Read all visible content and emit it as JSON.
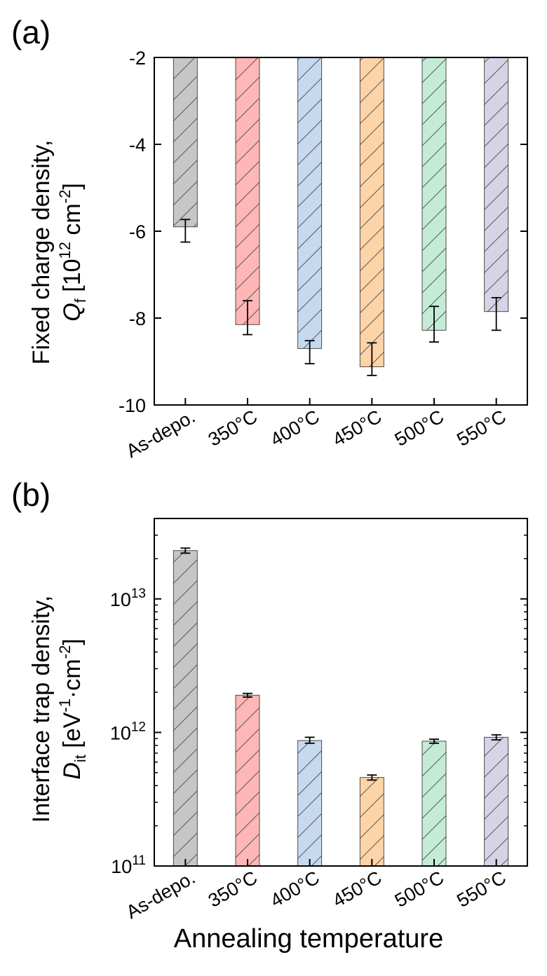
{
  "chart_data": [
    {
      "panel_label": "(a)",
      "type": "bar",
      "yscale": "linear",
      "ylim": [
        -10,
        -2
      ],
      "yticks": [
        -10,
        -8,
        -6,
        -4,
        -2
      ],
      "ytick_labels": [
        "-10",
        "-8",
        "-6",
        "-4",
        "-2"
      ],
      "ylabel_line1": "Fixed charge density,",
      "ylabel_line2_main": "Q",
      "ylabel_line2_sub": "f",
      "ylabel_line2_rest": " [10",
      "ylabel_line2_sup1": "12",
      "ylabel_line2_mid": " cm",
      "ylabel_line2_sup2": "-2",
      "ylabel_line2_end": "]",
      "categories": [
        "As-depo.",
        "350°C",
        "400°C",
        "450°C",
        "500°C",
        "550°C"
      ],
      "values": [
        -5.9,
        -8.15,
        -8.7,
        -9.12,
        -8.28,
        -7.85
      ],
      "error_high": [
        -5.73,
        -7.6,
        -8.52,
        -8.57,
        -7.73,
        -7.53
      ],
      "error_low": [
        -6.25,
        -8.38,
        -9.05,
        -9.32,
        -8.55,
        -8.28
      ],
      "colors": [
        "#c6c6c6",
        "#ffb6b6",
        "#c6d9ee",
        "#fdd4a8",
        "#c4ebd6",
        "#d6d3e6"
      ]
    },
    {
      "panel_label": "(b)",
      "type": "bar",
      "yscale": "log",
      "ylim": [
        100000000000.0,
        40000000000000.0
      ],
      "yticks": [
        100000000000.0,
        1000000000000.0,
        10000000000000.0
      ],
      "ytick_base": [
        "10",
        "10",
        "10"
      ],
      "ytick_exp": [
        "11",
        "12",
        "13"
      ],
      "ylabel_line1": "Interface trap density,",
      "ylabel_line2_main": "D",
      "ylabel_line2_sub": "it",
      "ylabel_line2_rest": " [eV",
      "ylabel_line2_sup1": "-1",
      "ylabel_line2_mid": "·cm",
      "ylabel_line2_sup2": "-2",
      "ylabel_line2_end": "]",
      "xlabel": "Annealing temperature",
      "categories": [
        "As-depo.",
        "350°C",
        "400°C",
        "450°C",
        "500°C",
        "550°C"
      ],
      "values": [
        23000000000000.0,
        1900000000000.0,
        870000000000.0,
        460000000000.0,
        860000000000.0,
        920000000000.0
      ],
      "error_high": [
        24000000000000.0,
        1960000000000.0,
        920000000000.0,
        480000000000.0,
        890000000000.0,
        960000000000.0
      ],
      "error_low": [
        22000000000000.0,
        1840000000000.0,
        830000000000.0,
        440000000000.0,
        830000000000.0,
        880000000000.0
      ],
      "colors": [
        "#c6c6c6",
        "#ffb6b6",
        "#c6d9ee",
        "#fdd4a8",
        "#c4ebd6",
        "#d6d3e6"
      ]
    }
  ]
}
